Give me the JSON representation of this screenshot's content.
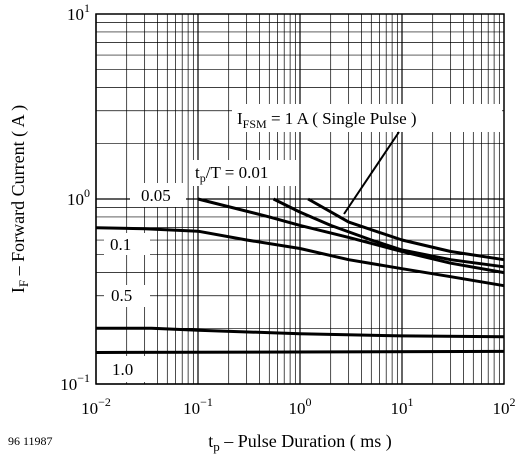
{
  "figure_id": "96 11987",
  "chart_data": {
    "type": "line",
    "xscale": "log",
    "yscale": "log",
    "xlim": [
      0.01,
      100
    ],
    "ylim": [
      0.1,
      10
    ],
    "grid": true,
    "xlabel": {
      "main": "t",
      "sub": "p",
      "rest": " – Pulse Duration ( ms )"
    },
    "ylabel": {
      "main": "I",
      "sub": "F",
      "rest": " – Forward Current ( A )"
    },
    "xticks": [
      {
        "value": 0.01,
        "base": "10",
        "exp": "−2"
      },
      {
        "value": 0.1,
        "base": "10",
        "exp": "−1"
      },
      {
        "value": 1,
        "base": "10",
        "exp": "0"
      },
      {
        "value": 10,
        "base": "10",
        "exp": "1"
      },
      {
        "value": 100,
        "base": "10",
        "exp": "2"
      }
    ],
    "yticks": [
      {
        "value": 0.1,
        "base": "10",
        "exp": "−1"
      },
      {
        "value": 1,
        "base": "10",
        "exp": "0"
      },
      {
        "value": 10,
        "base": "10",
        "exp": "1"
      }
    ],
    "annotations": {
      "ifsm": {
        "main": "I",
        "sub": "FSM",
        "rest": " = 1 A ( Single Pulse )"
      },
      "duty": {
        "main": "t",
        "sub": "p",
        "rest": "/T = 0.01"
      }
    },
    "series": [
      {
        "name": "0.01",
        "points": [
          [
            1.2,
            1.0
          ],
          [
            3,
            0.75
          ],
          [
            10,
            0.6
          ],
          [
            30,
            0.52
          ],
          [
            100,
            0.47
          ]
        ]
      },
      {
        "name": "0.05",
        "points": [
          [
            0.1,
            1.0
          ],
          [
            0.5,
            0.8
          ],
          [
            1,
            0.72
          ],
          [
            3,
            0.62
          ],
          [
            10,
            0.52
          ],
          [
            30,
            0.45
          ],
          [
            100,
            0.4
          ]
        ]
      },
      {
        "name": "1 A ( Single Pulse )",
        "points": [
          [
            0.55,
            1.0
          ],
          [
            1,
            0.85
          ],
          [
            2,
            0.72
          ],
          [
            5,
            0.6
          ],
          [
            10,
            0.53
          ],
          [
            30,
            0.47
          ],
          [
            100,
            0.43
          ]
        ]
      },
      {
        "name": "0.1",
        "points": [
          [
            0.01,
            0.7
          ],
          [
            0.03,
            0.69
          ],
          [
            0.1,
            0.67
          ],
          [
            0.3,
            0.6
          ],
          [
            1,
            0.54
          ],
          [
            3,
            0.47
          ],
          [
            10,
            0.42
          ],
          [
            30,
            0.38
          ],
          [
            100,
            0.34
          ]
        ]
      },
      {
        "name": "0.5",
        "points": [
          [
            0.01,
            0.2
          ],
          [
            0.035,
            0.2
          ],
          [
            0.1,
            0.195
          ],
          [
            1,
            0.187
          ],
          [
            10,
            0.182
          ],
          [
            100,
            0.18
          ]
        ]
      },
      {
        "name": "1.0",
        "points": [
          [
            0.01,
            0.148
          ],
          [
            100,
            0.15
          ]
        ]
      }
    ],
    "series_labels": [
      "0.05",
      "0.1",
      "0.5",
      "1.0"
    ]
  }
}
